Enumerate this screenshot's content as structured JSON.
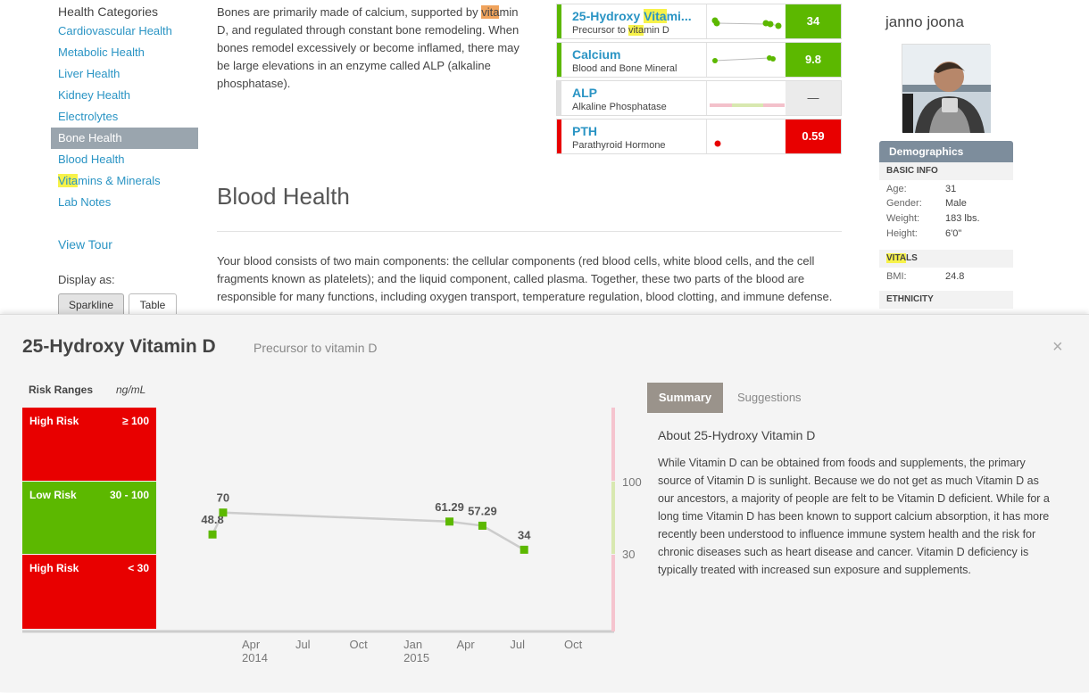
{
  "sidebar": {
    "title": "Health Categories",
    "items": [
      {
        "label": "Cardiovascular Health"
      },
      {
        "label": "Metabolic Health"
      },
      {
        "label": "Liver Health"
      },
      {
        "label": "Kidney Health"
      },
      {
        "label": "Electrolytes"
      },
      {
        "label": "Bone Health",
        "active": true
      },
      {
        "label": "Blood Health"
      },
      {
        "label_hl": "Vita",
        "label_rest": "mins & Minerals"
      },
      {
        "label": "Lab Notes"
      }
    ],
    "view_tour": "View Tour",
    "display_as": "Display as:",
    "display_options": [
      "Sparkline",
      "Table"
    ],
    "display_selected": "Sparkline"
  },
  "main": {
    "bone_text_1": "Bones are primarily made of calcium, supported by ",
    "bone_text_hl": "vita",
    "bone_text_2": "min D, and regulated through constant bone remodeling. When bones remodel excessively or become inflamed, there may be large elevations in an enzyme called ALP (alkaline phosphatase).",
    "blood_heading": "Blood Health",
    "blood_text": "Your blood consists of two main components: the cellular components (red blood cells, white blood cells, and the cell fragments known as platelets); and the liquid component, called plasma. Together, these two parts of the blood are responsible for many functions, including oxygen transport, temperature regulation, blood clotting, and immune defense."
  },
  "cards": [
    {
      "name_pre": "25-Hydroxy ",
      "name_hl": "Vita",
      "name_post": "mi...",
      "sub_pre": "Precursor to ",
      "sub_hl": "vita",
      "sub_post": "min D",
      "value": "34",
      "color": "#5cb800"
    },
    {
      "name": "Calcium",
      "sub": "Blood and Bone Mineral",
      "value": "9.8",
      "color": "#5cb800"
    },
    {
      "name": "ALP",
      "sub": "Alkaline Phosphatase",
      "value": "—",
      "color": "#e0e0e0"
    },
    {
      "name": "PTH",
      "sub": "Parathyroid Hormone",
      "value": "0.59",
      "color": "#e80000"
    }
  ],
  "profile": {
    "username": "janno joona",
    "demographics": "Demographics",
    "basic_info": "BASIC INFO",
    "age_k": "Age:",
    "age_v": "31",
    "gender_k": "Gender:",
    "gender_v": "Male",
    "weight_k": "Weight:",
    "weight_v": "183 lbs.",
    "height_k": "Height:",
    "height_v": "6'0\"",
    "vitals_hl": "VITA",
    "vitals_rest": "LS",
    "bmi_k": "BMI:",
    "bmi_v": "24.8",
    "ethnicity": "ETHNICITY"
  },
  "detail": {
    "title": "25-Hydroxy Vitamin D",
    "subtitle": "Precursor to vitamin D",
    "close": "×",
    "risk_label": "Risk Ranges",
    "unit": "ng/mL",
    "zones": [
      {
        "name": "High Risk",
        "range": "≥ 100",
        "color": "#e80000"
      },
      {
        "name": "Low Risk",
        "range": "30 - 100",
        "color": "#5cb800"
      },
      {
        "name": "High Risk",
        "range": "< 30",
        "color": "#e80000"
      }
    ],
    "tabs": [
      "Summary",
      "Suggestions"
    ],
    "about_heading": "About 25-Hydroxy Vitamin D",
    "about_text": "While Vitamin D can be obtained from foods and supplements, the primary source of Vitamin D is sunlight. Because we do not get as much Vitamin D as our ancestors, a majority of people are felt to be Vitamin D deficient. While for a long time Vitamin D has been known to support calcium absorption, it has more recently been understood to influence immune system health and the risk for chronic diseases such as heart disease and cancer. Vitamin D deficiency is typically treated with increased sun exposure and supplements."
  },
  "chart_data": {
    "type": "line",
    "unit": "ng/mL",
    "x": [
      "2014-02-10",
      "2014-02-28",
      "2015-03-20",
      "2015-05-15",
      "2015-07-25"
    ],
    "values": [
      48.8,
      70,
      61.29,
      57.29,
      34
    ],
    "labels": [
      "48.8",
      "70",
      "61.29",
      "57.29",
      "34"
    ],
    "x_ticks": [
      {
        "date": "2014-04-01",
        "label": "Apr",
        "year": "2014"
      },
      {
        "date": "2014-07-01",
        "label": "Jul"
      },
      {
        "date": "2014-10-01",
        "label": "Oct"
      },
      {
        "date": "2015-01-01",
        "label": "Jan",
        "year": "2015"
      },
      {
        "date": "2015-04-01",
        "label": "Apr"
      },
      {
        "date": "2015-07-01",
        "label": "Jul"
      },
      {
        "date": "2015-10-01",
        "label": "Oct"
      }
    ],
    "y_ticks": [
      100,
      30
    ],
    "point_color": "#5cb800",
    "line_color": "#cccccc"
  }
}
